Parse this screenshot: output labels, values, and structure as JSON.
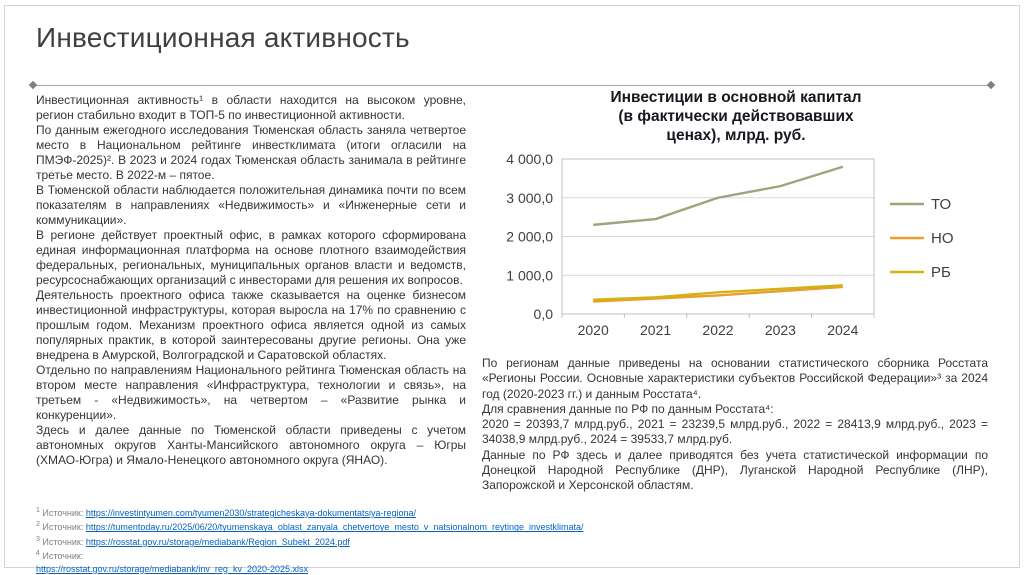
{
  "slide_title": "Инвестиционная активность",
  "left_column": {
    "paragraphs": [
      "Инвестиционная активность¹ в области находится на высоком уровне, регион стабильно входит в ТОП-5 по инвестиционной активности.",
      "По данным ежегодного исследования Тюменская область заняла четвертое место в Национальном рейтинге инвестклимата (итоги огласили на ПМЭФ-2025)². В 2023 и 2024 годах Тюменская область занимала в рейтинге третье место. В 2022-м – пятое.",
      "В Тюменской области наблюдается положительная динамика почти по всем показателям в направлениях «Недвижимость» и «Инженерные сети и коммуникации».",
      "В регионе действует проектный офис, в рамках которого сформирована единая информационная платформа на основе плотного взаимодействия федеральных, региональных, муниципальных органов власти и ведомств, ресурсоснабжающих организаций с инвесторами для решения их вопросов.",
      "Деятельность проектного офиса также сказывается на оценке бизнесом инвестиционной инфраструктуры, которая выросла на 17% по сравнению с прошлым годом. Механизм проектного офиса является одной из самых популярных практик, в которой заинтересованы другие регионы. Она уже внедрена в Амурской, Волгоградской и Саратовской областях.",
      "Отдельно по направлениям Национального рейтинга Тюменская область на втором месте направления «Инфраструктура, технологии и связь», на третьем - «Недвижимость», на четвертом – «Развитие рынка и конкуренции».",
      "Здесь и далее данные по Тюменской области приведены с учетом автономных округов Ханты-Мансийского автономного округа – Югры (ХМАО-Югра) и Ямало-Ненецкого автономного округа (ЯНАО)."
    ]
  },
  "chart_data": {
    "type": "line",
    "title": "Инвестиции в основной капитал (в фактически действовавших ценах), млрд. руб.",
    "title_lines": [
      "Инвестиции в основной капитал",
      "(в фактически действовавших",
      "ценах), млрд. руб."
    ],
    "categories": [
      "2020",
      "2021",
      "2022",
      "2023",
      "2024"
    ],
    "series": [
      {
        "name": "ТО",
        "color": "#9da57f",
        "values": [
          2300,
          2450,
          3000,
          3300,
          3800
        ]
      },
      {
        "name": "НО",
        "color": "#ed9c2e",
        "values": [
          320,
          400,
          480,
          590,
          700
        ]
      },
      {
        "name": "РБ",
        "color": "#d0b414",
        "values": [
          370,
          430,
          560,
          650,
          740
        ]
      }
    ],
    "ylim": [
      0,
      4000
    ],
    "y_ticks": [
      0,
      1000,
      2000,
      3000,
      4000
    ],
    "y_tick_labels": [
      "0,0",
      "1 000,0",
      "2 000,0",
      "3 000,0",
      "4 000,0"
    ],
    "grid": true,
    "legend_position": "right"
  },
  "right_column": {
    "paragraphs": [
      "По регионам данные приведены на основании статистического сборника Росстата «Регионы России. Основные характеристики субъектов Российской Федерации»³ за 2024 год (2020-2023 гг.) и данным Росстата⁴.",
      "Для сравнения данные по РФ по данным Росстата⁴:",
      "2020 = 20393,7 млрд.руб., 2021 = 23239,5 млрд.руб., 2022 = 28413,9 млрд.руб., 2023 = 34038,9 млрд.руб., 2024 = 39533,7 млрд.руб.",
      "Данные по РФ здесь и далее приводятся без учета статистической информации по Донецкой Народной Республике (ДНР), Луганской Народной Республике (ЛНР), Запорожской и Херсонской областям."
    ]
  },
  "footnotes": {
    "items": [
      {
        "marker": "1",
        "label": "Источник:",
        "url": "https://investintyumen.com/tyumen2030/strategicheskaya-dokumentatsiya-regiona/"
      },
      {
        "marker": "2",
        "label": "Источник:",
        "url": "https://tumentoday.ru/2025/06/20/tyumenskaya_oblast_zanyala_chetvertoye_mesto_v_natsionalnom_reytinge_investklimata/"
      },
      {
        "marker": "3",
        "label": "Источник:",
        "url": "https://rosstat.gov.ru/storage/mediabank/Region_Subekt_2024.pdf"
      },
      {
        "marker": "4",
        "label": "Источник:",
        "url": "https://rosstat.gov.ru/storage/mediabank/inv_reg_kv_2020-2025.xlsx"
      }
    ]
  }
}
